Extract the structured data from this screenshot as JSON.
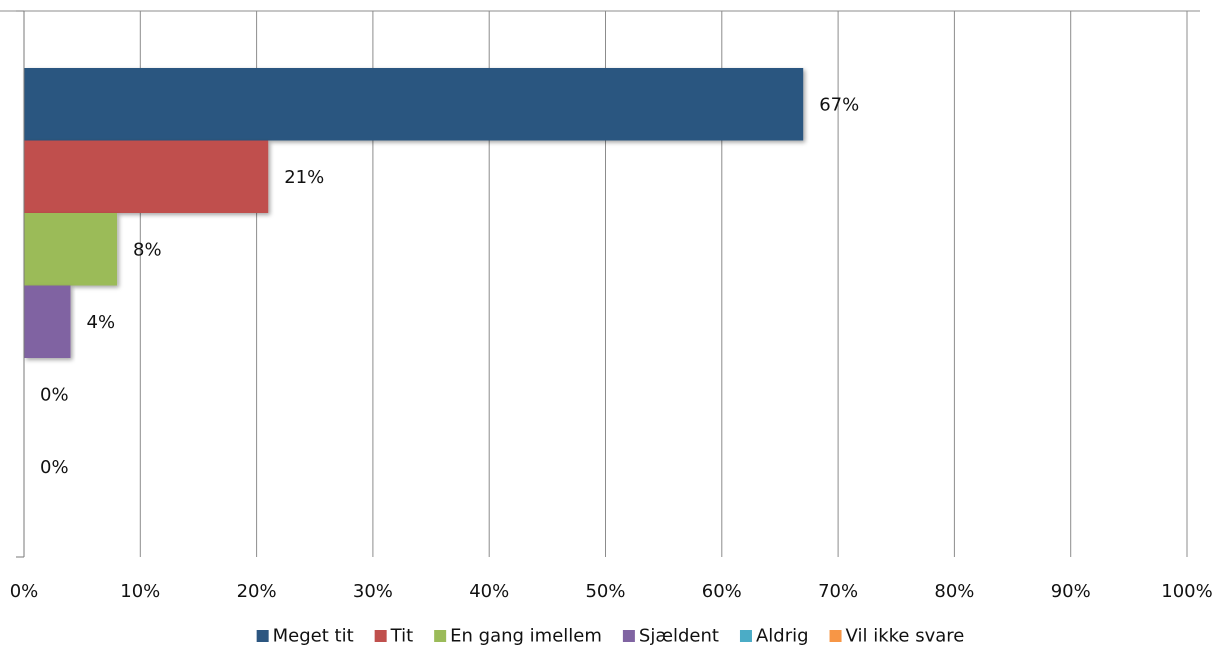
{
  "chart_data": {
    "type": "bar",
    "orientation": "horizontal",
    "title": "",
    "xlabel": "",
    "ylabel": "",
    "xlim": [
      0,
      100
    ],
    "x_ticks": [
      "0%",
      "10%",
      "20%",
      "30%",
      "40%",
      "50%",
      "60%",
      "70%",
      "80%",
      "90%",
      "100%"
    ],
    "grid": true,
    "legend_position": "bottom",
    "series": [
      {
        "name": "Meget tit",
        "value": 67,
        "label": "67%",
        "color": "#2C5680"
      },
      {
        "name": "Tit",
        "value": 21,
        "label": "21%",
        "color": "#C0504D"
      },
      {
        "name": "En gang imellem",
        "value": 8,
        "label": "8%",
        "color": "#9BBB59"
      },
      {
        "name": "Sjældent",
        "value": 4,
        "label": "4%",
        "color": "#8064A2"
      },
      {
        "name": "Aldrig",
        "value": 0,
        "label": "0%",
        "color": "#4BACC6"
      },
      {
        "name": "Vil ikke svare",
        "value": 0,
        "label": "0%",
        "color": "#F79646"
      }
    ]
  }
}
